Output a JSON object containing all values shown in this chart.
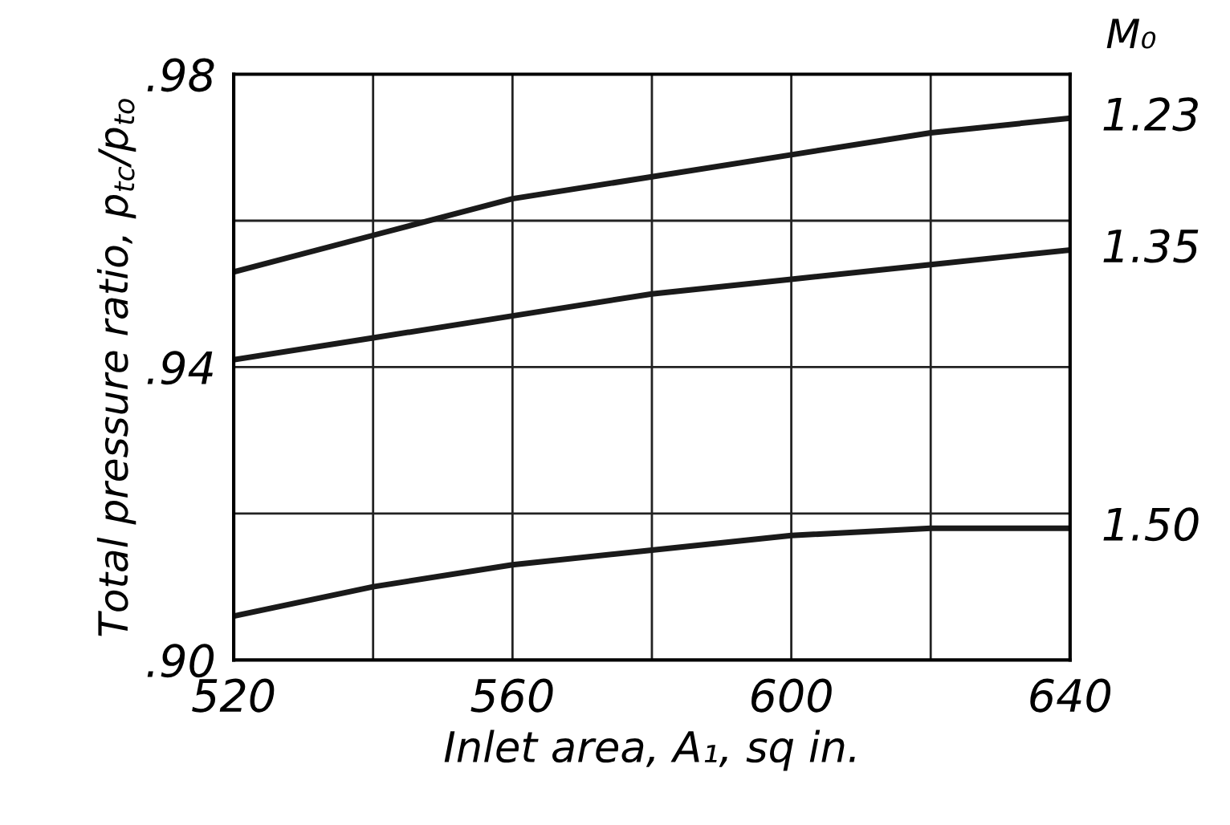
{
  "chart_data": {
    "type": "line",
    "xlabel": "Inlet area, A₁, sq in.",
    "ylabel": "Total pressure ratio, p$_{tc}$/p$_{to}$",
    "legend_title": "M₀",
    "x": [
      520,
      540,
      560,
      580,
      600,
      620,
      640
    ],
    "series": [
      {
        "name": "1.23",
        "color": "#1a1a1a",
        "values": [
          0.953,
          0.958,
          0.963,
          0.966,
          0.969,
          0.972,
          0.974
        ]
      },
      {
        "name": "1.35",
        "color": "#1a1a1a",
        "values": [
          0.941,
          0.944,
          0.947,
          0.95,
          0.952,
          0.954,
          0.956
        ]
      },
      {
        "name": "1.50",
        "color": "#1a1a1a",
        "values": [
          0.906,
          0.91,
          0.913,
          0.915,
          0.917,
          0.918,
          0.918
        ]
      }
    ],
    "xlim": [
      520,
      640
    ],
    "ylim": [
      0.9,
      0.98
    ],
    "xticks": [
      520,
      {
        "value": 540,
        "label": null
      },
      560,
      {
        "value": 580,
        "label": null
      },
      600,
      {
        "value": 620,
        "label": null
      },
      640
    ],
    "yticks": [
      {
        "value": 0.9,
        "label": ".90"
      },
      {
        "value": 0.92,
        "label": null
      },
      {
        "value": 0.94,
        "label": ".94"
      },
      {
        "value": 0.96,
        "label": null
      },
      {
        "value": 0.98,
        "label": ".98"
      }
    ],
    "grid": true,
    "legend": false,
    "line_style": "solid",
    "marker": "none"
  }
}
